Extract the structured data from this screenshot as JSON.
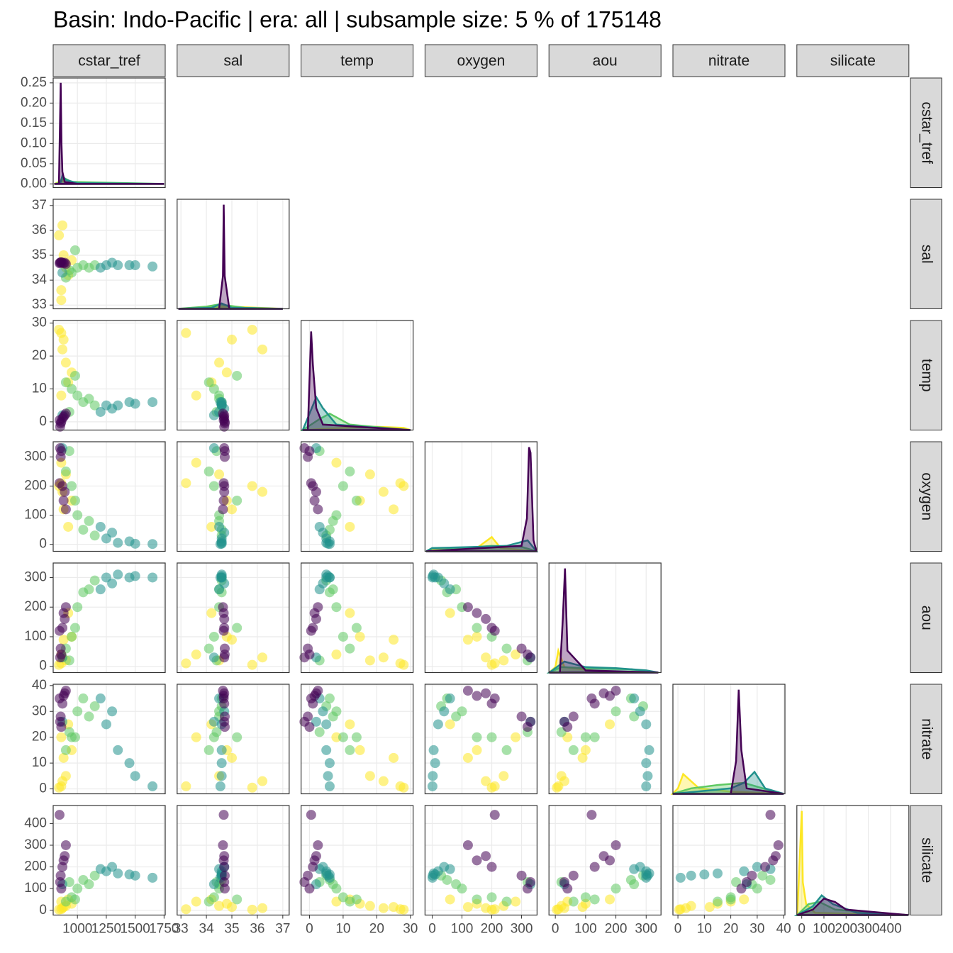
{
  "chart_data": {
    "type": "pairs",
    "title": "Basin: Indo-Pacific | era: all | subsample size: 5 % of 175148",
    "variables": [
      "cstar_tref",
      "sal",
      "temp",
      "oxygen",
      "aou",
      "nitrate",
      "silicate"
    ],
    "axes": [
      {
        "lim": [
          790,
          1760
        ],
        "ticks": [
          1000,
          1250,
          1500,
          1750
        ]
      },
      {
        "lim": [
          32.85,
          37.25
        ],
        "ticks": [
          33,
          34,
          35,
          36,
          37
        ]
      },
      {
        "lim": [
          -2.5,
          30.8
        ],
        "ticks": [
          0,
          10,
          20,
          30
        ]
      },
      {
        "lim": [
          -24,
          352
        ],
        "ticks": [
          0,
          100,
          200,
          300
        ]
      },
      {
        "lim": [
          -21,
          349
        ],
        "ticks": [
          0,
          100,
          200,
          300
        ]
      },
      {
        "lim": [
          -1.9,
          40.5
        ],
        "ticks": [
          0,
          10,
          20,
          30,
          40
        ]
      },
      {
        "lim": [
          -22,
          483
        ],
        "ticks": [
          0,
          100,
          200,
          300,
          400
        ]
      }
    ],
    "series": [
      {
        "color": "#FDE725",
        "points": [
          [
            840,
            35.8,
            28,
            200,
            5,
            0.5,
            3
          ],
          [
            860,
            33.2,
            27,
            210,
            10,
            1,
            5
          ],
          [
            870,
            36.2,
            22,
            180,
            30,
            3,
            10
          ],
          [
            900,
            34.5,
            18,
            240,
            20,
            5,
            20
          ],
          [
            880,
            35.0,
            25,
            120,
            90,
            12,
            15
          ],
          [
            920,
            34.2,
            12,
            60,
            180,
            25,
            50
          ],
          [
            950,
            34.8,
            15,
            150,
            100,
            15,
            30
          ],
          [
            860,
            33.6,
            8,
            280,
            40,
            20,
            40
          ]
        ]
      },
      {
        "color": "#5EC962",
        "points": [
          [
            950,
            34.3,
            10,
            200,
            100,
            20,
            60
          ],
          [
            1000,
            34.5,
            8,
            100,
            200,
            30,
            100
          ],
          [
            1050,
            34.6,
            6,
            50,
            250,
            35,
            140
          ],
          [
            1150,
            34.6,
            5,
            30,
            290,
            32,
            160
          ],
          [
            900,
            34.1,
            12,
            250,
            60,
            15,
            40
          ],
          [
            980,
            35.2,
            14,
            150,
            130,
            20,
            50
          ],
          [
            1100,
            34.5,
            7,
            80,
            260,
            28,
            120
          ],
          [
            930,
            34.4,
            3,
            320,
            20,
            22,
            130
          ]
        ]
      },
      {
        "color": "#21918C",
        "points": [
          [
            1250,
            34.6,
            5,
            20,
            300,
            25,
            180
          ],
          [
            1350,
            34.6,
            5,
            5,
            310,
            15,
            170
          ],
          [
            1500,
            34.6,
            5.5,
            2,
            305,
            5,
            160
          ],
          [
            1650,
            34.55,
            6,
            1,
            300,
            1,
            150
          ],
          [
            1300,
            34.7,
            4,
            40,
            280,
            30,
            200
          ],
          [
            1200,
            34.5,
            3,
            60,
            260,
            35,
            190
          ],
          [
            870,
            34.3,
            2,
            330,
            30,
            26,
            120
          ],
          [
            1450,
            34.6,
            6,
            10,
            300,
            10,
            165
          ]
        ]
      },
      {
        "color": "#440154",
        "points": [
          [
            850,
            34.7,
            -1.5,
            330,
            30,
            26,
            130
          ],
          [
            870,
            34.7,
            1,
            200,
            130,
            33,
            200
          ],
          [
            880,
            34.68,
            1.5,
            150,
            180,
            36,
            230
          ],
          [
            860,
            34.72,
            0,
            320,
            40,
            24,
            100
          ],
          [
            845,
            34.68,
            0.5,
            210,
            120,
            35,
            440
          ],
          [
            890,
            34.7,
            2,
            180,
            160,
            37,
            250
          ],
          [
            855,
            34.72,
            -0.5,
            300,
            60,
            28,
            160
          ],
          [
            900,
            34.65,
            2.5,
            120,
            200,
            38,
            300
          ]
        ]
      }
    ],
    "densities": [
      {
        "ylim": [
          -0.009,
          0.262
        ],
        "yticks": [
          {
            "value": 0,
            "label": "0.00"
          },
          {
            "value": 0.05,
            "label": "0.05"
          },
          {
            "value": 0.1,
            "label": "0.10"
          },
          {
            "value": 0.15,
            "label": "0.15"
          },
          {
            "value": 0.2,
            "label": "0.20"
          },
          {
            "value": 0.25,
            "label": "0.25"
          }
        ],
        "series": [
          {
            "x": [
              800,
              840,
              860,
              900,
              1000,
              1750
            ],
            "values": [
              0,
              0.005,
              0.01,
              0.003,
              0.001,
              0
            ]
          },
          {
            "x": [
              800,
              850,
              880,
              950,
              1750
            ],
            "values": [
              0,
              0.003,
              0.015,
              0.005,
              0
            ]
          },
          {
            "x": [
              800,
              850,
              870,
              900,
              1000,
              1750
            ],
            "values": [
              0,
              0,
              0.02,
              0.01,
              0.002,
              0
            ]
          },
          {
            "x": [
              800,
              840,
              855,
              862,
              870,
              890,
              1000,
              1750
            ],
            "values": [
              0,
              0,
              0.25,
              0.1,
              0.03,
              0.005,
              0,
              0
            ]
          }
        ]
      },
      {
        "ylim": [
          0,
          1
        ],
        "series": [
          {
            "x": [
              32.9,
              33.5,
              34.8,
              36,
              37
            ],
            "values": [
              0,
              0.01,
              0.02,
              0.01,
              0
            ]
          },
          {
            "x": [
              32.9,
              34,
              34.5,
              35.5,
              37
            ],
            "values": [
              0,
              0.02,
              0.04,
              0.01,
              0
            ]
          },
          {
            "x": [
              32.9,
              34.2,
              34.6,
              35.0,
              37
            ],
            "values": [
              0,
              0.01,
              0.05,
              0.01,
              0
            ]
          },
          {
            "x": [
              32.9,
              34.5,
              34.65,
              34.68,
              34.72,
              34.9,
              37
            ],
            "values": [
              0,
              0,
              0.3,
              0.95,
              0.3,
              0,
              0
            ]
          }
        ]
      },
      {
        "ylim": [
          0,
          1
        ],
        "series": [
          {
            "x": [
              -2,
              10,
              20,
              28,
              30
            ],
            "values": [
              0,
              0.02,
              0.03,
              0.02,
              0
            ]
          },
          {
            "x": [
              -2,
              3,
              6,
              12,
              30
            ],
            "values": [
              0,
              0.1,
              0.15,
              0.05,
              0
            ]
          },
          {
            "x": [
              -2,
              2,
              4,
              8,
              20,
              30
            ],
            "values": [
              0,
              0.3,
              0.2,
              0.05,
              0.02,
              0
            ]
          },
          {
            "x": [
              -2,
              -0.5,
              0.5,
              1,
              2,
              4,
              30
            ],
            "values": [
              0,
              0,
              0.9,
              0.6,
              0.2,
              0.05,
              0
            ]
          }
        ]
      },
      {
        "ylim": [
          0,
          1
        ],
        "series": [
          {
            "x": [
              -20,
              0,
              150,
              200,
              230,
              350
            ],
            "values": [
              0,
              0.02,
              0.03,
              0.13,
              0.03,
              0
            ]
          },
          {
            "x": [
              -20,
              100,
              200,
              300,
              350
            ],
            "values": [
              0,
              0.03,
              0.05,
              0.04,
              0
            ]
          },
          {
            "x": [
              -20,
              0,
              150,
              250,
              320,
              350
            ],
            "values": [
              0,
              0.03,
              0.04,
              0.05,
              0.1,
              0
            ]
          },
          {
            "x": [
              -20,
              300,
              318,
              325,
              330,
              340,
              350
            ],
            "values": [
              0,
              0.05,
              0.3,
              0.95,
              0.9,
              0.1,
              0
            ]
          }
        ]
      },
      {
        "ylim": [
          0,
          1
        ],
        "series": [
          {
            "x": [
              -20,
              0,
              10,
              30,
              150,
              340
            ],
            "values": [
              0,
              0.05,
              0.2,
              0.05,
              0.01,
              0
            ]
          },
          {
            "x": [
              -20,
              20,
              100,
              250,
              340
            ],
            "values": [
              0,
              0.05,
              0.04,
              0.03,
              0
            ]
          },
          {
            "x": [
              -20,
              30,
              100,
              200,
              300,
              340
            ],
            "values": [
              0,
              0.1,
              0.05,
              0.04,
              0.02,
              0
            ]
          },
          {
            "x": [
              -20,
              15,
              25,
              32,
              40,
              100,
              340
            ],
            "values": [
              0,
              0,
              0.5,
              0.95,
              0.2,
              0.02,
              0
            ]
          }
        ]
      },
      {
        "ylim": [
          0,
          1
        ],
        "series": [
          {
            "x": [
              -2,
              0,
              2,
              8,
              20,
              40
            ],
            "values": [
              0,
              0.05,
              0.18,
              0.05,
              0.02,
              0
            ]
          },
          {
            "x": [
              -2,
              5,
              15,
              25,
              35,
              40
            ],
            "values": [
              0,
              0.05,
              0.08,
              0.1,
              0.03,
              0
            ]
          },
          {
            "x": [
              -2,
              20,
              25,
              29,
              33,
              40
            ],
            "values": [
              0,
              0.05,
              0.1,
              0.2,
              0.05,
              0
            ]
          },
          {
            "x": [
              -2,
              20,
              22,
              23,
              24,
              26,
              40
            ],
            "values": [
              0,
              0,
              0.3,
              0.95,
              0.4,
              0.05,
              0
            ]
          }
        ]
      },
      {
        "ylim": [
          0,
          1
        ],
        "series": [
          {
            "x": [
              -20,
              0,
              5,
              20,
              60,
              480
            ],
            "values": [
              0,
              0.95,
              0.3,
              0.1,
              0.02,
              0
            ]
          },
          {
            "x": [
              -20,
              30,
              80,
              150,
              480
            ],
            "values": [
              0,
              0.1,
              0.12,
              0.05,
              0
            ]
          },
          {
            "x": [
              -20,
              50,
              90,
              140,
              250,
              480
            ],
            "values": [
              0,
              0.08,
              0.18,
              0.1,
              0.02,
              0
            ]
          },
          {
            "x": [
              -20,
              50,
              100,
              150,
              200,
              480
            ],
            "values": [
              0,
              0.05,
              0.15,
              0.12,
              0.05,
              0
            ]
          }
        ]
      }
    ]
  }
}
